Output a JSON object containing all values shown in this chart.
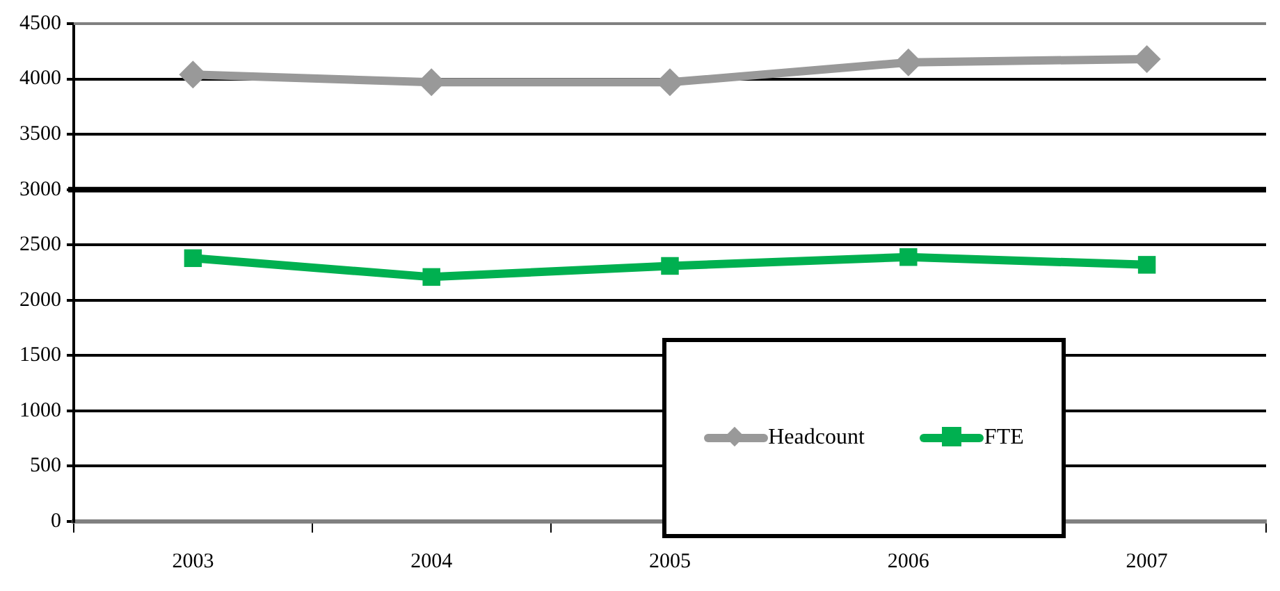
{
  "chart_data": {
    "type": "line",
    "categories": [
      "2003",
      "2004",
      "2005",
      "2006",
      "2007"
    ],
    "series": [
      {
        "name": "Headcount",
        "color": "#999999",
        "marker": "diamond",
        "values": [
          4040,
          3970,
          3970,
          4150,
          4180
        ]
      },
      {
        "name": "FTE",
        "color": "#00b050",
        "marker": "square",
        "values": [
          2380,
          2210,
          2310,
          2390,
          2320
        ]
      }
    ],
    "ylim": [
      0,
      4500
    ],
    "yticks": [
      0,
      500,
      1000,
      1500,
      2000,
      2500,
      3000,
      3500,
      4000,
      4500
    ],
    "grid": "y",
    "legend": "bottom",
    "ref_lines": [
      {
        "axis": "y",
        "value": 3000,
        "color": "#000000"
      }
    ]
  }
}
